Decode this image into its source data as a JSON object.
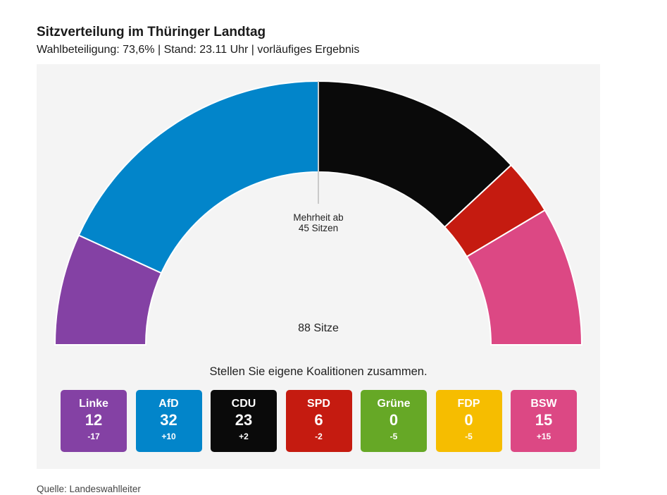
{
  "header": {
    "title": "Sitzverteilung im Thüringer Landtag",
    "subtitle": "Wahlbeteiligung: 73,6% | Stand: 23.11 Uhr | vorläufiges Ergebnis"
  },
  "chart_data": {
    "type": "parliament-semicircle",
    "total_label": "88 Sitze",
    "majority_label_line1": "Mehrheit ab",
    "majority_label_line2": "45 Sitzen",
    "majority_seats": 45,
    "parties": [
      {
        "name": "Linke",
        "seats": 12,
        "change": "-17",
        "color": "#8441a4"
      },
      {
        "name": "AfD",
        "seats": 32,
        "change": "+10",
        "color": "#0285ca"
      },
      {
        "name": "CDU",
        "seats": 23,
        "change": "+2",
        "color": "#0a0a0a"
      },
      {
        "name": "SPD",
        "seats": 6,
        "change": "-2",
        "color": "#c51b10"
      },
      {
        "name": "Grüne",
        "seats": 0,
        "change": "-5",
        "color": "#66a826"
      },
      {
        "name": "FDP",
        "seats": 0,
        "change": "-5",
        "color": "#f6bd00"
      },
      {
        "name": "BSW",
        "seats": 15,
        "change": "+15",
        "color": "#dc4884"
      }
    ]
  },
  "coalition": {
    "prompt": "Stellen Sie eigene Koalitionen zusammen."
  },
  "footer": {
    "source": "Quelle: Landeswahlleiter"
  }
}
